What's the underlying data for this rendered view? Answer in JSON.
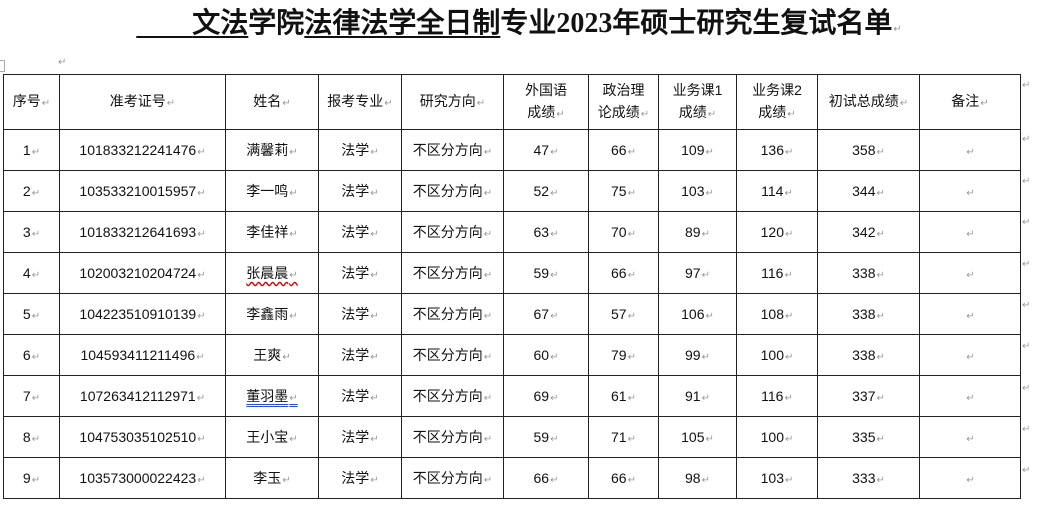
{
  "title": {
    "blank_prefix": "　　",
    "college": "文法",
    "college_suffix": "学院",
    "major": "法律法学全日制",
    "rest": "专业2023年硕士研究生复试名单"
  },
  "table": {
    "headers": [
      "序号",
      "准考证号",
      "姓名",
      "报考专业",
      "研究方向",
      "外国语成绩",
      "政治理论成绩",
      "业务课1成绩",
      "业务课2成绩",
      "初试总成绩",
      "备注"
    ],
    "rows": [
      [
        "1",
        "101833212241476",
        "满馨莉",
        "法学",
        "不区分方向",
        "47",
        "66",
        "109",
        "136",
        "358",
        ""
      ],
      [
        "2",
        "103533210015957",
        "李一鸣",
        "法学",
        "不区分方向",
        "52",
        "75",
        "103",
        "114",
        "344",
        ""
      ],
      [
        "3",
        "101833212641693",
        "李佳祥",
        "法学",
        "不区分方向",
        "63",
        "70",
        "89",
        "120",
        "342",
        ""
      ],
      [
        "4",
        "102003210204724",
        "张晨晨",
        "法学",
        "不区分方向",
        "59",
        "66",
        "97",
        "116",
        "338",
        ""
      ],
      [
        "5",
        "104223510910139",
        "李鑫雨",
        "法学",
        "不区分方向",
        "67",
        "57",
        "106",
        "108",
        "338",
        ""
      ],
      [
        "6",
        "104593411211496",
        "王爽",
        "法学",
        "不区分方向",
        "60",
        "79",
        "99",
        "100",
        "338",
        ""
      ],
      [
        "7",
        "107263412112971",
        "董羽墨",
        "法学",
        "不区分方向",
        "69",
        "61",
        "91",
        "116",
        "337",
        ""
      ],
      [
        "8",
        "104753035102510",
        "王小宝",
        "法学",
        "不区分方向",
        "59",
        "71",
        "105",
        "100",
        "335",
        ""
      ],
      [
        "9",
        "103573000022423",
        "李玉",
        "法学",
        "不区分方向",
        "66",
        "66",
        "98",
        "103",
        "333",
        ""
      ]
    ]
  }
}
